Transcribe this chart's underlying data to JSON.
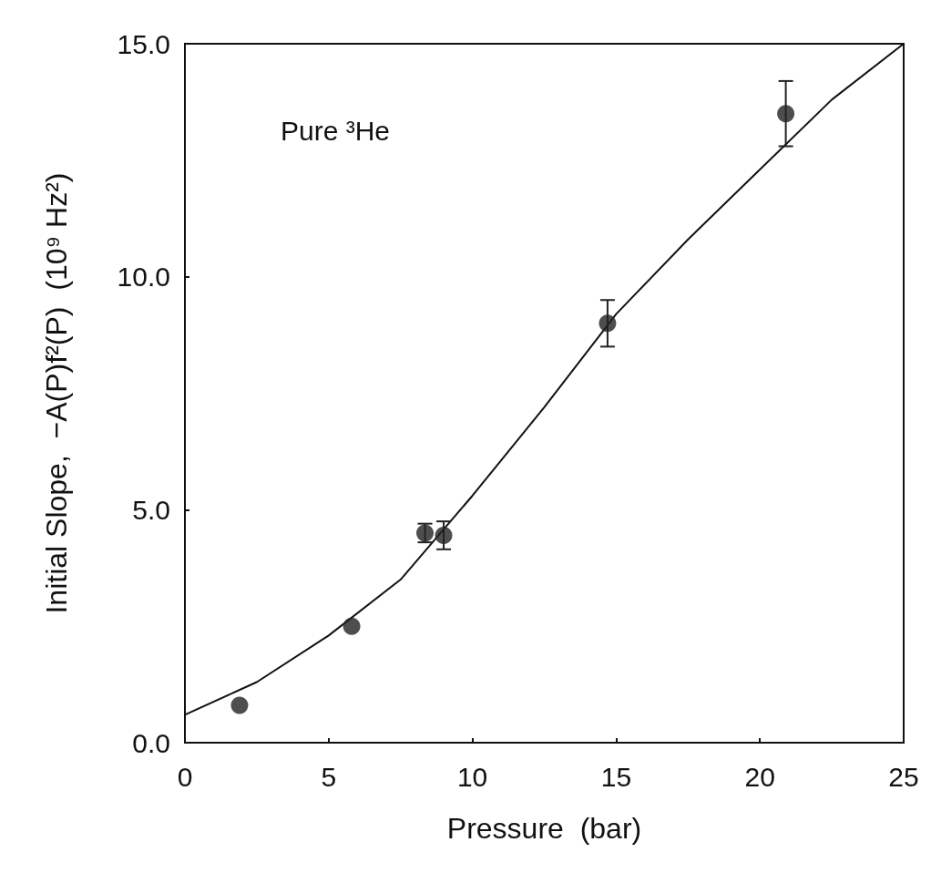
{
  "chart_data": {
    "type": "scatter",
    "xlabel": "Pressure  (bar)",
    "ylabel": "Initial Slope,  −A(P)f²(P)  (10⁹ Hz²)",
    "annotations": [
      "Pure ³He"
    ],
    "xlim": [
      0,
      25
    ],
    "xticks": [
      0,
      5,
      10,
      15,
      20,
      25
    ],
    "ylim": [
      0,
      15
    ],
    "yticks": [
      {
        "value": 0,
        "label": "0.0"
      },
      {
        "value": 5,
        "label": "5.0"
      },
      {
        "value": 10,
        "label": "10.0"
      },
      {
        "value": 15,
        "label": "15.0"
      }
    ],
    "grid": false,
    "marker": "circle",
    "series": [
      {
        "color": "#222222",
        "x": [
          1.9,
          5.8,
          8.35,
          9.0,
          14.7,
          20.9
        ],
        "values": [
          0.8,
          2.5,
          4.5,
          4.45,
          9.0,
          13.5
        ],
        "errors": [
          null,
          null,
          0.2,
          0.3,
          0.5,
          0.7
        ]
      },
      {
        "type": "line",
        "color": "#111111",
        "marker": "none",
        "line_style": "solid",
        "x": [
          0,
          2.5,
          5,
          7.5,
          10,
          12.5,
          15,
          17.5,
          20,
          22.5,
          25
        ],
        "values": [
          0.6,
          1.3,
          2.3,
          3.5,
          5.3,
          7.2,
          9.2,
          10.8,
          12.3,
          13.8,
          15.0
        ]
      }
    ]
  }
}
